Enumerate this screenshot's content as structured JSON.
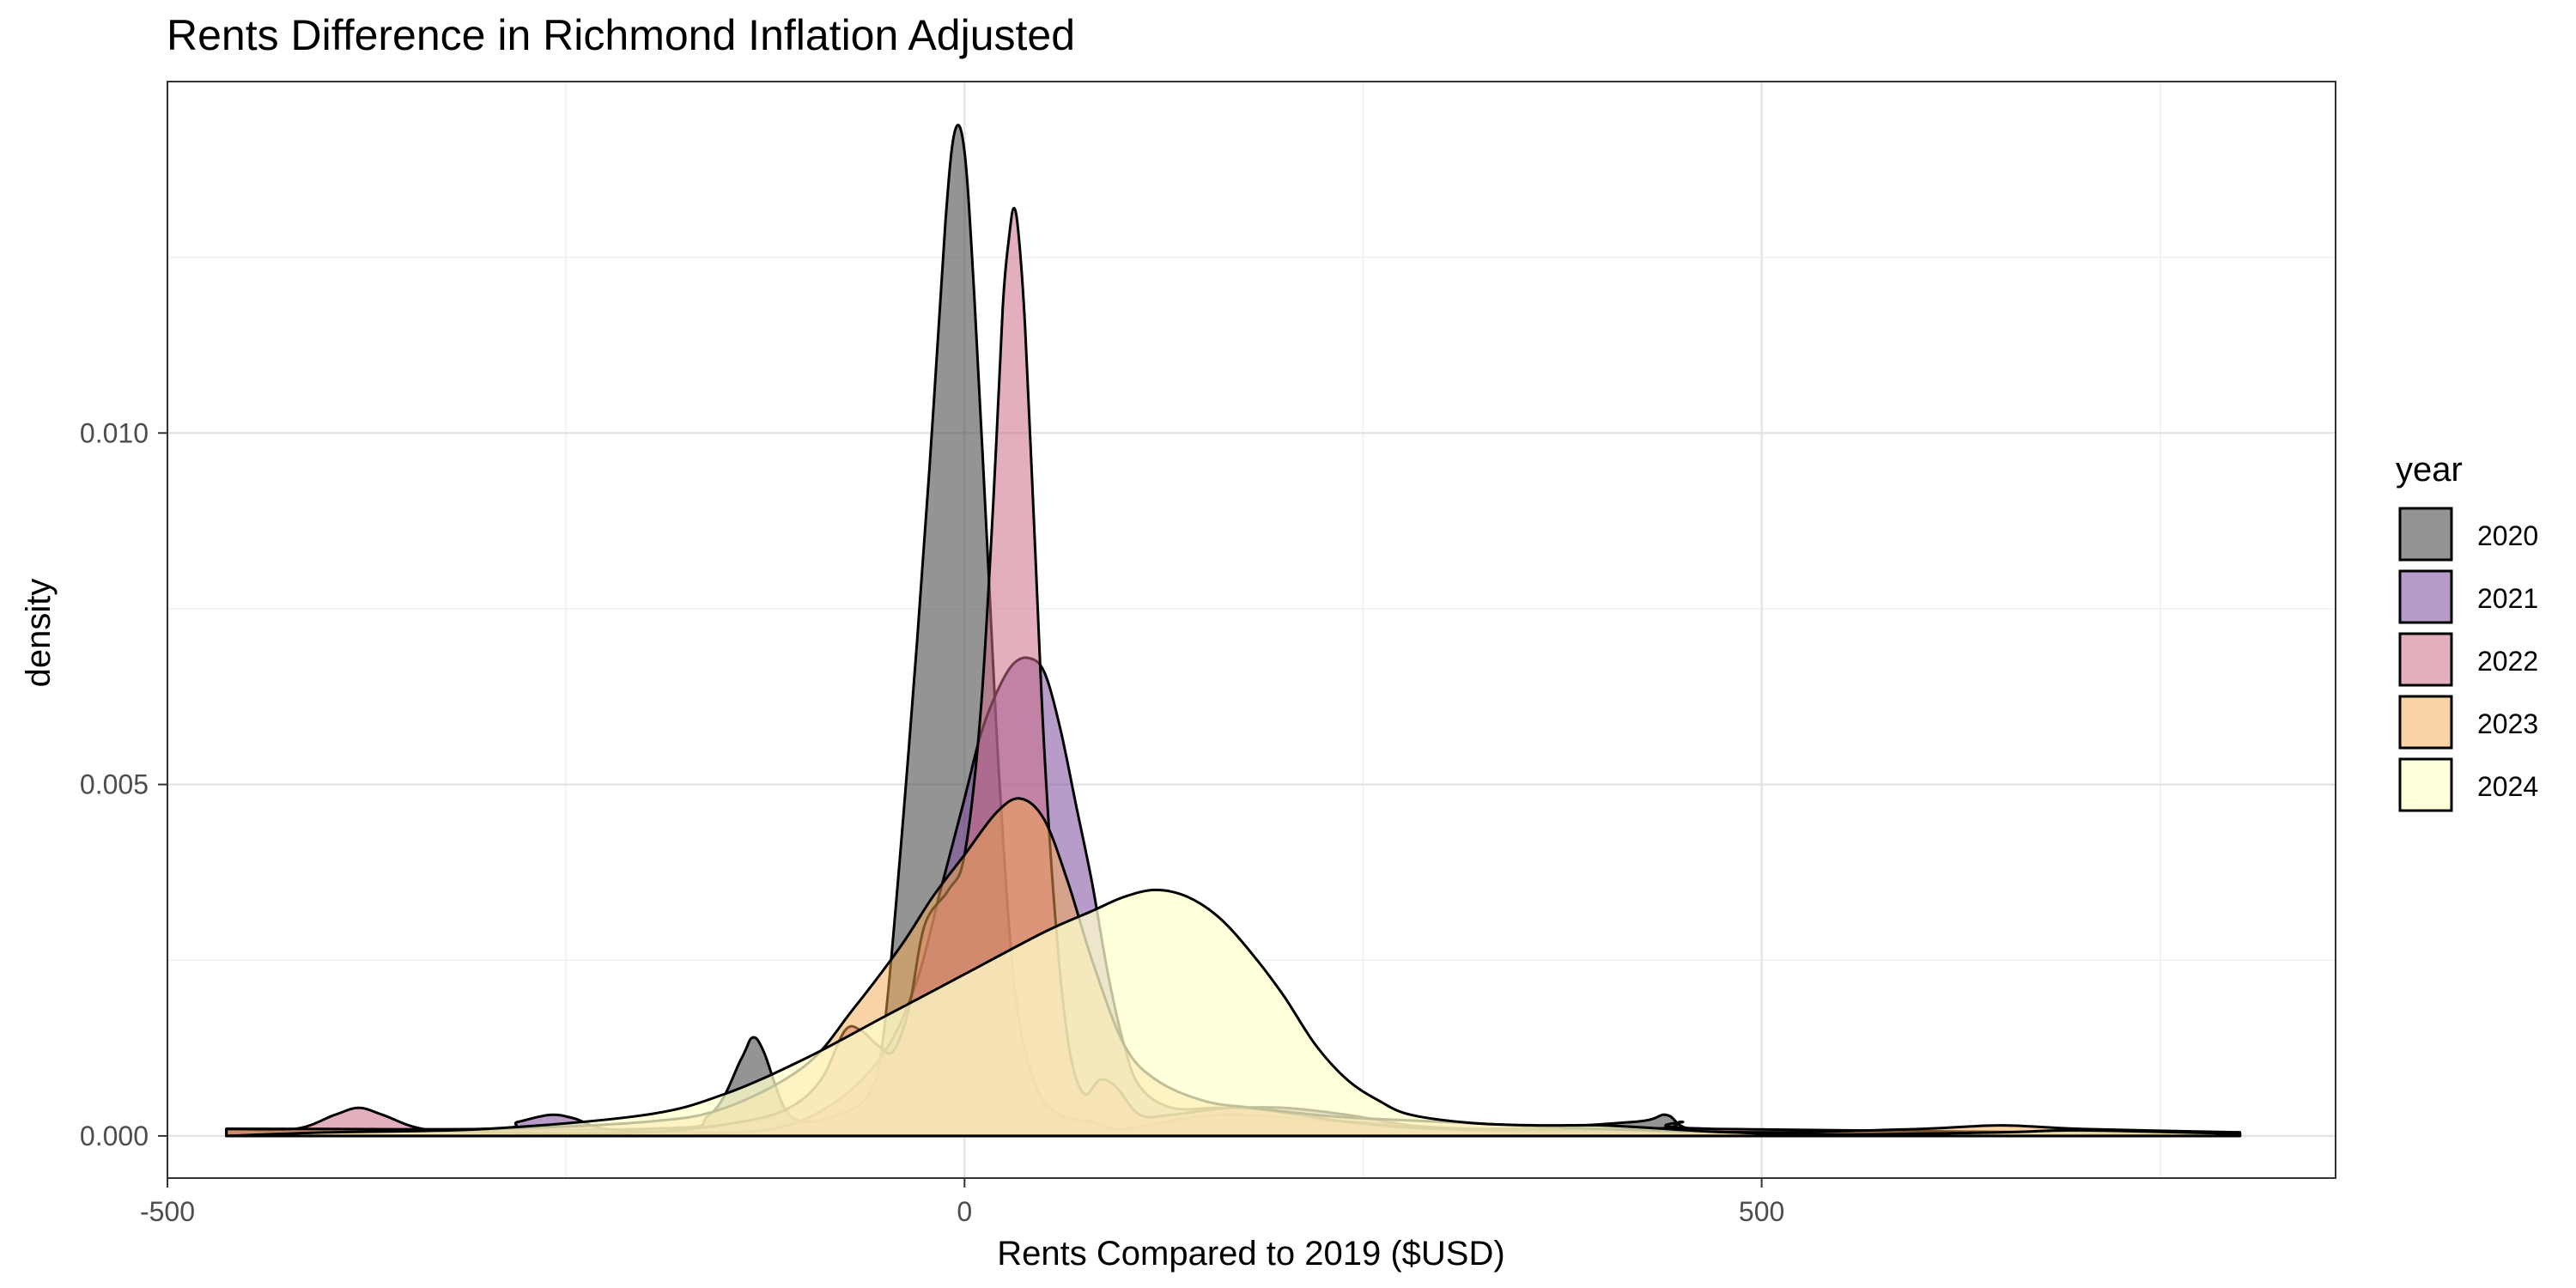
{
  "chart_data": {
    "type": "area",
    "title": "Rents Difference in Richmond Inflation Adjusted",
    "xlabel": "Rents Compared to 2019 ($USD)",
    "ylabel": "density",
    "xlim": [
      -500,
      860
    ],
    "ylim": [
      -0.0006,
      0.015
    ],
    "x_ticks": [
      -500,
      0,
      500
    ],
    "x_tick_labels": [
      "-500",
      "0",
      "500"
    ],
    "y_ticks": [
      0.0,
      0.005,
      0.01
    ],
    "y_tick_labels": [
      "0.000",
      "0.005",
      "0.010"
    ],
    "grid": true,
    "legend": {
      "title": "year",
      "position": "right"
    },
    "series": [
      {
        "name": "2020",
        "color": "#4d4d4d",
        "opacity": 0.6,
        "points": [
          [
            -463,
            0.0001
          ],
          [
            -200,
            0.0001
          ],
          [
            -160,
            0.0003
          ],
          [
            -140,
            0.0011
          ],
          [
            -133,
            0.0014
          ],
          [
            -126,
            0.0012
          ],
          [
            -113,
            0.0004
          ],
          [
            -100,
            0.0002
          ],
          [
            -80,
            0.0003
          ],
          [
            -60,
            0.0006
          ],
          [
            -50,
            0.0016
          ],
          [
            -35,
            0.0055
          ],
          [
            -22,
            0.0095
          ],
          [
            -12,
            0.013
          ],
          [
            -6,
            0.0143
          ],
          [
            0,
            0.014
          ],
          [
            6,
            0.012
          ],
          [
            14,
            0.0085
          ],
          [
            22,
            0.005
          ],
          [
            32,
            0.002
          ],
          [
            45,
            0.0007
          ],
          [
            60,
            0.0003
          ],
          [
            80,
            0.0002
          ],
          [
            100,
            0.0001
          ],
          [
            160,
            0.0003
          ],
          [
            240,
            0.0002
          ],
          [
            330,
            0.0001
          ],
          [
            420,
            0.0002
          ],
          [
            440,
            0.0003
          ],
          [
            455,
            0.0001
          ],
          [
            500,
            5e-05
          ],
          [
            800,
            5e-05
          ]
        ]
      },
      {
        "name": "2021",
        "color": "#7b4a9c",
        "opacity": 0.55,
        "points": [
          [
            -463,
            0.0001
          ],
          [
            -300,
            0.0001
          ],
          [
            -280,
            0.0002
          ],
          [
            -260,
            0.0003
          ],
          [
            -245,
            0.00025
          ],
          [
            -225,
            0.0001
          ],
          [
            -180,
            5e-05
          ],
          [
            -120,
            0.0001
          ],
          [
            -80,
            0.0005
          ],
          [
            -50,
            0.0012
          ],
          [
            -30,
            0.0022
          ],
          [
            -15,
            0.0035
          ],
          [
            0,
            0.0048
          ],
          [
            10,
            0.0057
          ],
          [
            20,
            0.0063
          ],
          [
            30,
            0.0067
          ],
          [
            40,
            0.0068
          ],
          [
            50,
            0.0066
          ],
          [
            60,
            0.0058
          ],
          [
            70,
            0.0047
          ],
          [
            80,
            0.0036
          ],
          [
            90,
            0.0023
          ],
          [
            100,
            0.0013
          ],
          [
            110,
            0.0007
          ],
          [
            130,
            0.0004
          ],
          [
            160,
            0.0004
          ],
          [
            200,
            0.0004
          ],
          [
            240,
            0.0003
          ],
          [
            300,
            0.0001
          ],
          [
            400,
            5e-05
          ],
          [
            800,
            3e-05
          ]
        ]
      },
      {
        "name": "2022",
        "color": "#cc6e86",
        "opacity": 0.55,
        "points": [
          [
            -463,
            0.0001
          ],
          [
            -420,
            0.0001
          ],
          [
            -395,
            0.0003
          ],
          [
            -380,
            0.0004
          ],
          [
            -365,
            0.0003
          ],
          [
            -340,
            0.0001
          ],
          [
            -300,
            5e-05
          ],
          [
            -200,
            5e-05
          ],
          [
            -140,
            0.0002
          ],
          [
            -110,
            0.0004
          ],
          [
            -90,
            0.0008
          ],
          [
            -75,
            0.0015
          ],
          [
            -65,
            0.0015
          ],
          [
            -55,
            0.0013
          ],
          [
            -45,
            0.0012
          ],
          [
            -35,
            0.0018
          ],
          [
            -25,
            0.003
          ],
          [
            -10,
            0.0035
          ],
          [
            0,
            0.004
          ],
          [
            10,
            0.006
          ],
          [
            18,
            0.009
          ],
          [
            24,
            0.0118
          ],
          [
            28,
            0.0128
          ],
          [
            31,
            0.0132
          ],
          [
            34,
            0.0128
          ],
          [
            38,
            0.0115
          ],
          [
            44,
            0.0085
          ],
          [
            50,
            0.0055
          ],
          [
            58,
            0.0028
          ],
          [
            66,
            0.0012
          ],
          [
            75,
            0.0006
          ],
          [
            85,
            0.0008
          ],
          [
            95,
            0.0007
          ],
          [
            110,
            0.0003
          ],
          [
            130,
            0.0003
          ],
          [
            170,
            0.0004
          ],
          [
            210,
            0.0003
          ],
          [
            240,
            0.0002
          ],
          [
            300,
            0.0001
          ],
          [
            430,
            0.0001
          ],
          [
            450,
            0.0002
          ],
          [
            470,
            0.0001
          ],
          [
            800,
            3e-05
          ]
        ]
      },
      {
        "name": "2023",
        "color": "#f5a84d",
        "opacity": 0.5,
        "points": [
          [
            -463,
            0.0001
          ],
          [
            -400,
            0.0001
          ],
          [
            -300,
            0.0001
          ],
          [
            -200,
            0.0002
          ],
          [
            -150,
            0.0004
          ],
          [
            -100,
            0.001
          ],
          [
            -70,
            0.0018
          ],
          [
            -40,
            0.0027
          ],
          [
            -20,
            0.0034
          ],
          [
            0,
            0.004
          ],
          [
            20,
            0.0046
          ],
          [
            35,
            0.0048
          ],
          [
            50,
            0.0045
          ],
          [
            65,
            0.0036
          ],
          [
            80,
            0.0025
          ],
          [
            100,
            0.0013
          ],
          [
            120,
            0.0008
          ],
          [
            150,
            0.0005
          ],
          [
            180,
            0.0004
          ],
          [
            220,
            0.0003
          ],
          [
            250,
            0.00025
          ],
          [
            300,
            0.0002
          ],
          [
            400,
            0.0001
          ],
          [
            500,
            5e-05
          ],
          [
            600,
            0.0001
          ],
          [
            650,
            0.00015
          ],
          [
            700,
            0.0001
          ],
          [
            800,
            5e-05
          ]
        ]
      },
      {
        "name": "2024",
        "color": "#ffffcc",
        "opacity": 0.75,
        "points": [
          [
            -463,
            0.0
          ],
          [
            -400,
            5e-05
          ],
          [
            -300,
            0.0001
          ],
          [
            -200,
            0.0003
          ],
          [
            -150,
            0.0006
          ],
          [
            -100,
            0.0011
          ],
          [
            -50,
            0.0017
          ],
          [
            0,
            0.0023
          ],
          [
            50,
            0.0029
          ],
          [
            80,
            0.0032
          ],
          [
            100,
            0.0034
          ],
          [
            120,
            0.0035
          ],
          [
            140,
            0.0034
          ],
          [
            160,
            0.0031
          ],
          [
            180,
            0.0026
          ],
          [
            200,
            0.002
          ],
          [
            220,
            0.0013
          ],
          [
            240,
            0.0008
          ],
          [
            260,
            0.0005
          ],
          [
            280,
            0.0003
          ],
          [
            320,
            0.00018
          ],
          [
            360,
            0.00015
          ],
          [
            400,
            0.00015
          ],
          [
            440,
            0.0001
          ],
          [
            480,
            5e-05
          ],
          [
            550,
            2e-05
          ],
          [
            650,
            5e-05
          ],
          [
            700,
            8e-05
          ],
          [
            800,
            3e-05
          ]
        ]
      }
    ]
  }
}
